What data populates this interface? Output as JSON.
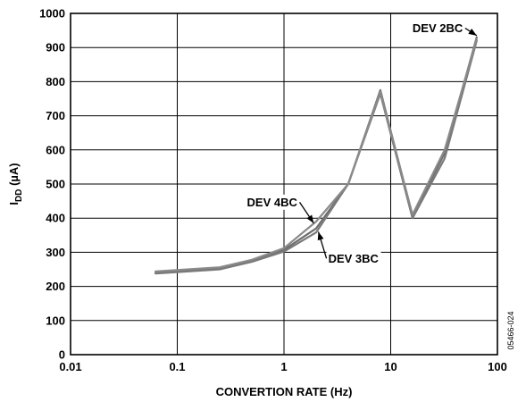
{
  "chart_data": {
    "type": "line",
    "xlabel": "CONVERTION RATE (Hz)",
    "ylabel_main": "I",
    "ylabel_sub": "DD",
    "ylabel_unit": " (µA)",
    "x_scale": "log",
    "xlim": [
      0.01,
      100
    ],
    "ylim": [
      0,
      1000
    ],
    "x_ticks": [
      "0.01",
      "0.1",
      "1",
      "10",
      "100"
    ],
    "y_ticks": [
      "0",
      "100",
      "200",
      "300",
      "400",
      "500",
      "600",
      "700",
      "800",
      "900",
      "1000"
    ],
    "grid": true,
    "series": [
      {
        "name": "DEV 2BC",
        "color": "#6e6e6e",
        "x": [
          0.0625,
          0.25,
          0.5,
          1,
          2,
          4,
          8,
          16,
          32,
          64
        ],
        "y": [
          240,
          253,
          275,
          307,
          370,
          500,
          775,
          405,
          590,
          930
        ]
      },
      {
        "name": "DEV 3BC",
        "color": "#7a7a7a",
        "x": [
          0.0625,
          0.25,
          0.5,
          1,
          2,
          4,
          8,
          16,
          32,
          64
        ],
        "y": [
          238,
          250,
          272,
          302,
          358,
          500,
          765,
          400,
          575,
          920
        ]
      },
      {
        "name": "DEV 4BC",
        "color": "#8a8a8a",
        "x": [
          0.0625,
          0.25,
          0.5,
          1,
          2,
          4,
          8,
          16,
          32,
          64
        ],
        "y": [
          244,
          256,
          278,
          312,
          390,
          500,
          770,
          410,
          600,
          925
        ]
      }
    ],
    "annotations": [
      {
        "label": "DEV 2BC",
        "x": 16,
        "y": 945,
        "arrow_to": [
          64,
          935
        ]
      },
      {
        "label": "DEV 4BC",
        "x": 0.45,
        "y": 435,
        "arrow_to": [
          1.9,
          385
        ]
      },
      {
        "label": "DEV 3BC",
        "x": 2.6,
        "y": 270,
        "arrow_to": [
          2.1,
          360
        ]
      }
    ],
    "side_label": "05466-024"
  }
}
